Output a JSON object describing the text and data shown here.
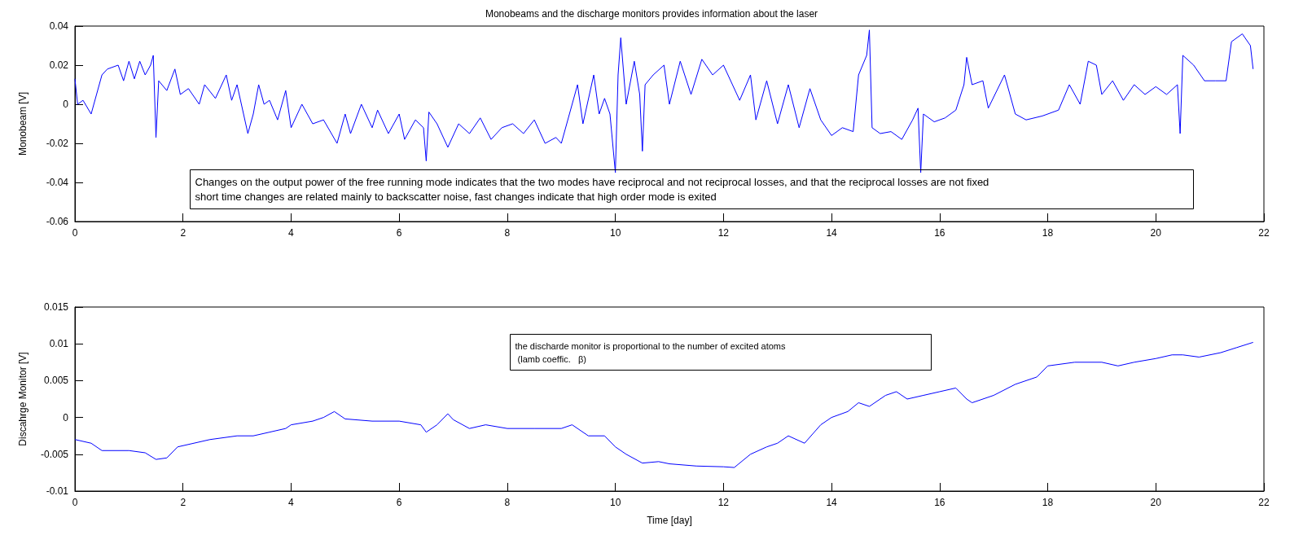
{
  "chart_data": [
    {
      "type": "line",
      "title": "Monobeams and the discharge monitors provides information about the laser",
      "ylabel": "Monobeam [V]",
      "color": "#0000ff",
      "grid": false,
      "xlim": [
        0,
        22
      ],
      "xticks": [
        0,
        2,
        4,
        6,
        8,
        10,
        12,
        14,
        16,
        18,
        20,
        22
      ],
      "ylim": [
        -0.06,
        0.04
      ],
      "yticks": [
        -0.06,
        -0.04,
        -0.02,
        0,
        0.02,
        0.04
      ],
      "annotations": [
        "Changes on the output power of the free running mode indicates that the two modes have reciprocal and not reciprocal losses, and that the reciprocal losses are not fixed\nshort time changes are related mainly to backscatter noise, fast changes indicate that high order mode is exited"
      ],
      "x": [
        0,
        0.05,
        0.15,
        0.3,
        0.4,
        0.5,
        0.6,
        0.8,
        0.9,
        1.0,
        1.1,
        1.2,
        1.3,
        1.4,
        1.45,
        1.5,
        1.55,
        1.7,
        1.85,
        1.95,
        2.1,
        2.3,
        2.4,
        2.6,
        2.8,
        2.9,
        3.0,
        3.2,
        3.3,
        3.4,
        3.5,
        3.6,
        3.75,
        3.9,
        4.0,
        4.2,
        4.4,
        4.6,
        4.85,
        5.0,
        5.1,
        5.3,
        5.5,
        5.6,
        5.8,
        6.0,
        6.1,
        6.3,
        6.45,
        6.5,
        6.55,
        6.7,
        6.9,
        7.1,
        7.3,
        7.5,
        7.7,
        7.9,
        8.1,
        8.3,
        8.5,
        8.7,
        8.9,
        9.0,
        9.1,
        9.3,
        9.4,
        9.6,
        9.7,
        9.8,
        9.9,
        10.0,
        10.05,
        10.1,
        10.2,
        10.35,
        10.45,
        10.5,
        10.55,
        10.7,
        10.9,
        11.0,
        11.2,
        11.4,
        11.6,
        11.8,
        12.0,
        12.3,
        12.5,
        12.6,
        12.8,
        13.0,
        13.2,
        13.4,
        13.6,
        13.8,
        14.0,
        14.2,
        14.4,
        14.5,
        14.65,
        14.7,
        14.75,
        14.9,
        15.1,
        15.3,
        15.5,
        15.6,
        15.65,
        15.7,
        15.9,
        16.1,
        16.3,
        16.45,
        16.5,
        16.6,
        16.8,
        16.9,
        17.2,
        17.4,
        17.6,
        17.9,
        18.2,
        18.4,
        18.6,
        18.75,
        18.9,
        19.0,
        19.2,
        19.4,
        19.6,
        19.8,
        20.0,
        20.2,
        20.4,
        20.45,
        20.5,
        20.7,
        20.9,
        21.1,
        21.3,
        21.4,
        21.6,
        21.75,
        21.8
      ],
      "values": [
        0.013,
        0.0,
        0.002,
        -0.005,
        0.005,
        0.015,
        0.018,
        0.02,
        0.012,
        0.022,
        0.013,
        0.022,
        0.015,
        0.02,
        0.025,
        -0.017,
        0.012,
        0.007,
        0.018,
        0.005,
        0.008,
        0.0,
        0.01,
        0.003,
        0.015,
        0.002,
        0.01,
        -0.015,
        -0.005,
        0.01,
        0.0,
        0.002,
        -0.008,
        0.007,
        -0.012,
        0.0,
        -0.01,
        -0.008,
        -0.02,
        -0.005,
        -0.015,
        0.0,
        -0.012,
        -0.003,
        -0.015,
        -0.005,
        -0.018,
        -0.008,
        -0.012,
        -0.029,
        -0.004,
        -0.01,
        -0.022,
        -0.01,
        -0.015,
        -0.007,
        -0.018,
        -0.012,
        -0.01,
        -0.015,
        -0.008,
        -0.02,
        -0.017,
        -0.02,
        -0.01,
        0.01,
        -0.01,
        0.015,
        -0.005,
        0.003,
        -0.005,
        -0.035,
        0.015,
        0.034,
        0.0,
        0.022,
        0.005,
        -0.024,
        0.01,
        0.015,
        0.02,
        0.0,
        0.022,
        0.005,
        0.023,
        0.015,
        0.02,
        0.002,
        0.015,
        -0.008,
        0.012,
        -0.01,
        0.01,
        -0.012,
        0.008,
        -0.008,
        -0.016,
        -0.012,
        -0.014,
        0.015,
        0.025,
        0.038,
        -0.012,
        -0.015,
        -0.014,
        -0.018,
        -0.008,
        -0.002,
        -0.035,
        -0.005,
        -0.009,
        -0.007,
        -0.003,
        0.01,
        0.024,
        0.01,
        0.012,
        -0.002,
        0.015,
        -0.005,
        -0.008,
        -0.006,
        -0.003,
        0.01,
        0.0,
        0.022,
        0.02,
        0.005,
        0.012,
        0.002,
        0.01,
        0.005,
        0.009,
        0.005,
        0.01,
        -0.015,
        0.025,
        0.02,
        0.012,
        0.012,
        0.012,
        0.032,
        0.036,
        0.03,
        0.018
      ]
    },
    {
      "type": "line",
      "xlabel": "Time [day]",
      "ylabel": "Discahrge Monitor [V]",
      "color": "#0000ff",
      "grid": false,
      "xlim": [
        0,
        22
      ],
      "xticks": [
        0,
        2,
        4,
        6,
        8,
        10,
        12,
        14,
        16,
        18,
        20,
        22
      ],
      "ylim": [
        -0.01,
        0.015
      ],
      "yticks": [
        -0.01,
        -0.005,
        0,
        0.005,
        0.01,
        0.015
      ],
      "annotations": [
        "the discharde monitor is proportional to the number of excited atoms\n (lamb coeffic.   β)"
      ],
      "x": [
        0,
        0.3,
        0.5,
        1.0,
        1.3,
        1.5,
        1.7,
        1.9,
        2.2,
        2.5,
        3.0,
        3.3,
        3.6,
        3.9,
        4.0,
        4.4,
        4.6,
        4.8,
        5.0,
        5.5,
        6.0,
        6.4,
        6.5,
        6.7,
        6.9,
        7.0,
        7.3,
        7.6,
        8.0,
        8.5,
        9.0,
        9.2,
        9.5,
        9.8,
        10.0,
        10.2,
        10.5,
        10.8,
        11.0,
        11.5,
        12.0,
        12.2,
        12.5,
        12.8,
        13.0,
        13.2,
        13.5,
        13.8,
        14.0,
        14.3,
        14.5,
        14.7,
        15.0,
        15.2,
        15.4,
        15.7,
        16.0,
        16.3,
        16.5,
        16.6,
        17.0,
        17.4,
        17.8,
        18.0,
        18.5,
        19.0,
        19.3,
        19.6,
        20.0,
        20.3,
        20.5,
        20.8,
        21.2,
        21.5,
        21.8
      ],
      "values": [
        -0.003,
        -0.0035,
        -0.0045,
        -0.0045,
        -0.0048,
        -0.0057,
        -0.0055,
        -0.004,
        -0.0035,
        -0.003,
        -0.0025,
        -0.0025,
        -0.002,
        -0.0015,
        -0.001,
        -0.0005,
        0.0,
        0.0008,
        -0.0002,
        -0.0005,
        -0.0005,
        -0.001,
        -0.002,
        -0.001,
        0.0005,
        -0.0003,
        -0.0015,
        -0.001,
        -0.0015,
        -0.0015,
        -0.0015,
        -0.001,
        -0.0025,
        -0.0025,
        -0.004,
        -0.005,
        -0.0062,
        -0.006,
        -0.0063,
        -0.0066,
        -0.0067,
        -0.0068,
        -0.005,
        -0.004,
        -0.0035,
        -0.0025,
        -0.0035,
        -0.001,
        0.0,
        0.0008,
        0.002,
        0.0015,
        0.003,
        0.0035,
        0.0025,
        0.003,
        0.0035,
        0.004,
        0.0025,
        0.002,
        0.003,
        0.0045,
        0.0055,
        0.007,
        0.0075,
        0.0075,
        0.007,
        0.0075,
        0.008,
        0.0085,
        0.0085,
        0.0082,
        0.0088,
        0.0095,
        0.0102
      ]
    }
  ]
}
